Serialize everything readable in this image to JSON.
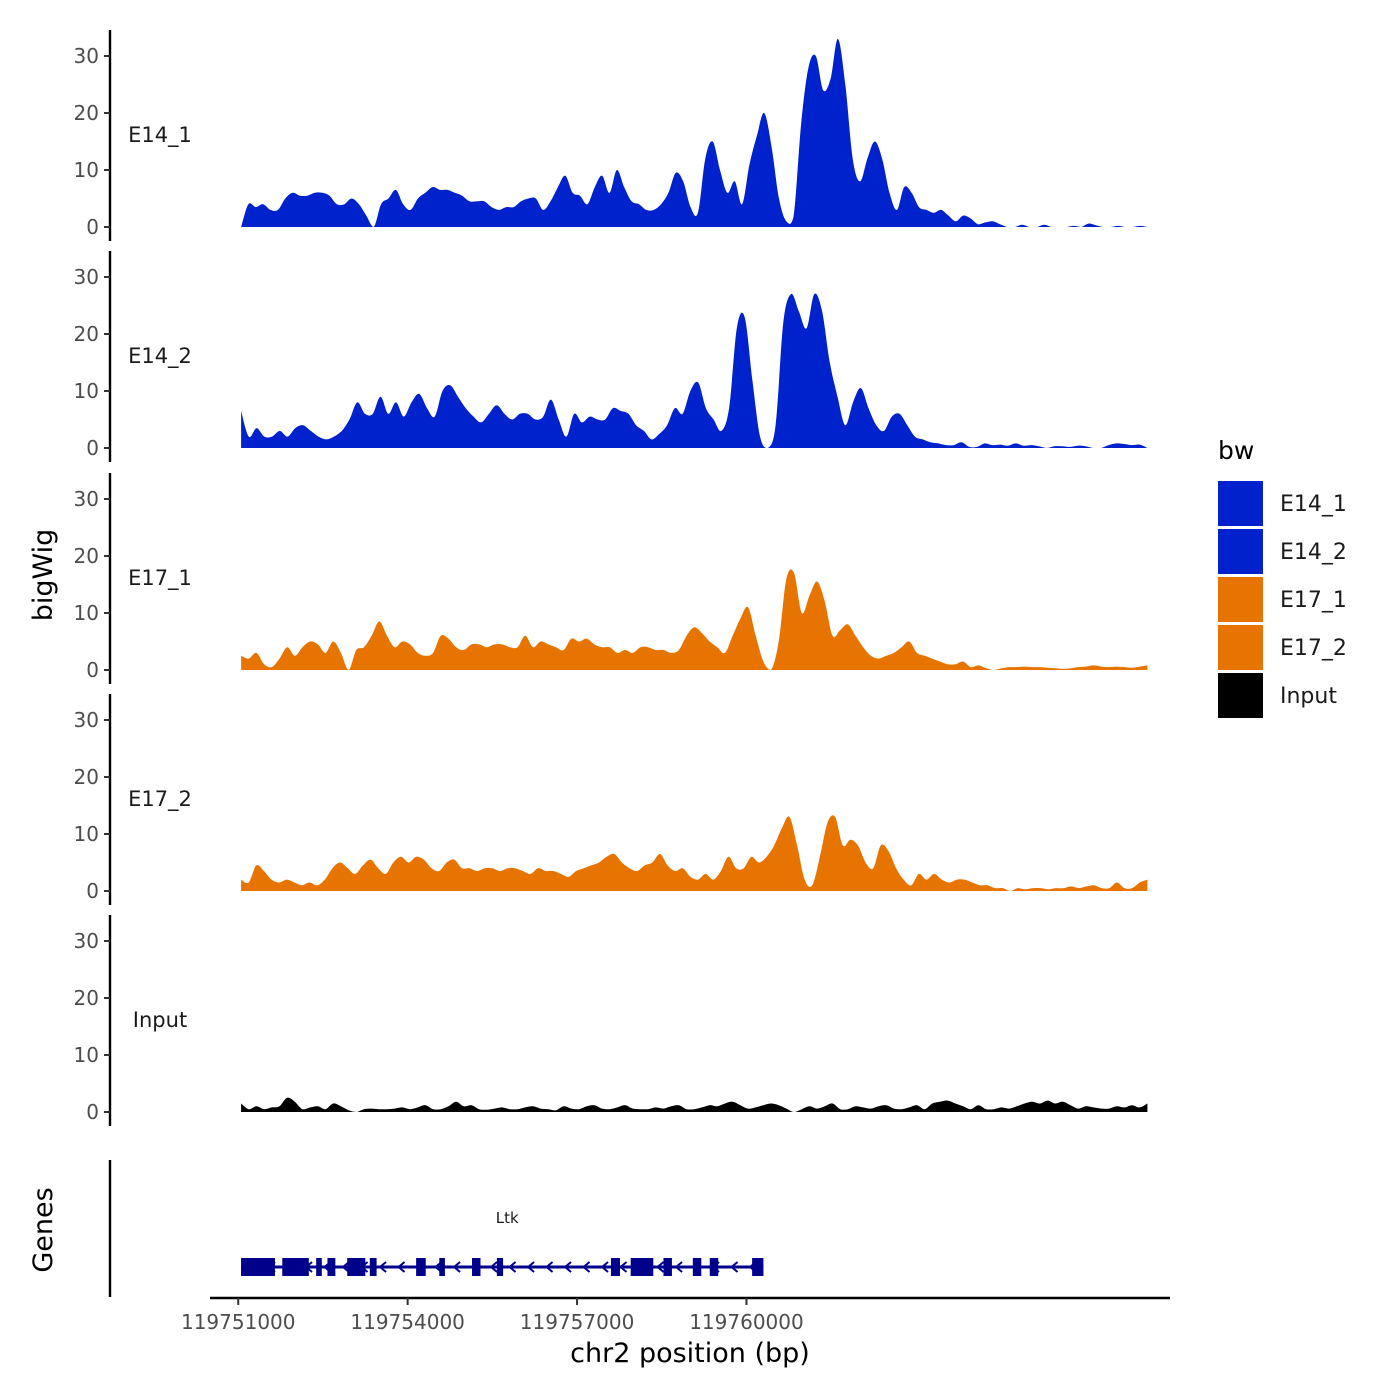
{
  "chart_data": {
    "type": "area",
    "ylabel": "bigWig",
    "xlabel": "chr2 position (bp)",
    "xlim": [
      119750500,
      119767500
    ],
    "data_range": [
      119751050,
      119767100
    ],
    "ylim": [
      0,
      35
    ],
    "yticks": [
      0,
      10,
      20,
      30
    ],
    "xticks": [
      119751000,
      119754000,
      119757000,
      119760000
    ],
    "xtick_labels": [
      "119751000",
      "119754000",
      "119757000",
      "119760000"
    ],
    "legend": {
      "title": "bw",
      "position": "right",
      "entries": [
        {
          "label": "E14_1",
          "color": "#0022CC"
        },
        {
          "label": "E14_2",
          "color": "#0022CC"
        },
        {
          "label": "E17_1",
          "color": "#E87400"
        },
        {
          "label": "E17_2",
          "color": "#E87400"
        },
        {
          "label": "Input",
          "color": "#000000"
        }
      ]
    },
    "series": [
      {
        "name": "E14_1",
        "color": "#0022CC",
        "values": [
          0,
          4,
          3.5,
          4,
          3,
          3,
          5,
          6,
          5.5,
          5.5,
          6,
          6,
          5.5,
          4,
          4,
          5,
          4,
          2,
          0,
          4,
          5,
          6.5,
          4,
          3,
          5,
          6,
          7,
          6.5,
          6.5,
          6,
          5.5,
          4.5,
          4.5,
          4.5,
          3.5,
          3,
          3.5,
          3.5,
          4.5,
          5,
          5,
          3,
          4.5,
          7,
          9,
          6,
          5.5,
          4,
          7,
          9,
          6,
          10,
          7,
          4.5,
          4,
          3,
          3,
          4,
          6,
          9.5,
          8,
          3.5,
          2.5,
          12,
          15,
          10,
          6,
          8,
          4,
          11,
          16,
          20,
          14,
          5,
          1,
          2,
          18,
          28,
          30,
          24,
          26,
          33,
          25,
          12,
          8,
          12,
          15,
          12,
          6,
          3,
          7,
          6,
          3.5,
          3,
          2.5,
          3,
          2,
          1,
          2,
          1.5,
          0.5,
          0.8,
          1,
          0.5,
          0,
          0,
          0.4,
          0,
          0,
          0.4,
          0,
          0,
          0,
          0.2,
          0,
          0.6,
          0.3,
          0,
          0,
          0.2,
          0,
          0,
          0.2,
          0
        ]
      },
      {
        "name": "E14_2",
        "color": "#0022CC",
        "values": [
          6.5,
          2,
          3.5,
          2,
          2,
          3,
          2,
          3.5,
          4,
          3,
          2,
          1.5,
          2,
          3,
          5,
          8,
          6,
          6,
          9,
          6,
          8,
          5.5,
          8,
          9.5,
          7,
          5.5,
          10,
          11,
          9,
          7,
          5.5,
          4.5,
          6,
          7.5,
          6,
          5,
          6,
          6,
          5,
          5.5,
          8.5,
          5,
          2,
          6,
          4.5,
          5.5,
          5,
          5,
          7,
          6.5,
          6,
          4,
          3,
          1.5,
          2.5,
          4,
          7,
          6,
          10,
          11.5,
          7,
          5,
          3,
          7,
          21,
          23,
          12,
          2,
          0,
          4,
          22,
          27,
          24,
          21,
          27,
          24,
          15,
          9,
          4,
          8,
          10.5,
          7,
          4,
          3,
          5.5,
          6,
          4,
          2,
          1.5,
          1,
          0.8,
          0.5,
          0.5,
          1,
          0.2,
          0.2,
          0.8,
          0.5,
          0.6,
          0.4,
          0.8,
          0.4,
          0.5,
          0.3,
          0,
          0.3,
          0.3,
          0.2,
          0.4,
          0.3,
          0,
          0,
          0.5,
          0.8,
          0.7,
          0.5,
          0.6,
          0
        ]
      },
      {
        "name": "E17_1",
        "color": "#E87400",
        "values": [
          2.5,
          2,
          3,
          1,
          0.5,
          2,
          4,
          2.5,
          4,
          5,
          4.5,
          3,
          5,
          3,
          0,
          3.5,
          4,
          6,
          8.5,
          6,
          4,
          5,
          4.5,
          3,
          2.5,
          3,
          6,
          5.5,
          4,
          3.5,
          4.5,
          4.5,
          4,
          4.5,
          4.5,
          4,
          4,
          6,
          4,
          5,
          4.5,
          4,
          3.5,
          5.5,
          5,
          5.5,
          4.5,
          4,
          4,
          3,
          3.5,
          3,
          4,
          4,
          3.5,
          3.5,
          3,
          3.5,
          6,
          7.5,
          6.5,
          5,
          4,
          3,
          6,
          9,
          11,
          6,
          1.5,
          0,
          5,
          16,
          17,
          10,
          13,
          15.5,
          12,
          6,
          7,
          8,
          6,
          4,
          2.5,
          2,
          2.5,
          3,
          4,
          5,
          3,
          2.5,
          2,
          1.5,
          1,
          1,
          1.5,
          0.5,
          0.8,
          0.3,
          0,
          0.3,
          0.5,
          0.5,
          0.6,
          0.5,
          0.5,
          0.4,
          0.3,
          0.2,
          0.3,
          0.5,
          0.6,
          0.8,
          0.6,
          0.5,
          0.6,
          0.5,
          0.4,
          0.6,
          0.8
        ]
      },
      {
        "name": "E17_2",
        "color": "#E87400",
        "values": [
          2,
          1.5,
          4.5,
          3.5,
          2,
          1.5,
          2,
          1.5,
          1,
          1.5,
          1,
          2,
          4,
          5,
          4,
          3,
          4.5,
          5.5,
          4,
          3,
          5,
          6,
          5,
          6,
          5.5,
          4,
          3.5,
          5,
          5.5,
          4,
          4,
          3.5,
          4,
          4,
          3.5,
          4,
          4,
          3.5,
          3,
          4,
          3.5,
          3.5,
          3,
          2.5,
          3.5,
          4,
          4.5,
          5,
          6,
          6.5,
          5,
          4,
          3.5,
          4.5,
          5,
          6.5,
          4.5,
          3.5,
          4,
          2.5,
          2,
          3,
          2,
          3.5,
          6,
          4,
          4,
          6,
          5,
          6,
          8,
          11,
          13,
          8,
          2,
          1,
          6,
          12,
          13,
          8,
          9,
          8,
          5,
          4,
          8,
          7,
          4,
          2,
          1,
          3,
          2,
          3,
          2,
          1.5,
          2,
          2,
          1.5,
          1,
          1,
          0.5,
          0.5,
          0,
          0.5,
          0.3,
          0.5,
          0.5,
          0.3,
          0.5,
          0.5,
          0.8,
          0.5,
          0.8,
          1,
          0.5,
          0.5,
          1.5,
          0.5,
          0.5,
          1.5,
          2
        ]
      },
      {
        "name": "Input",
        "color": "#000000",
        "values": [
          1.5,
          0.5,
          1,
          0.5,
          0.8,
          1,
          2.5,
          1.8,
          0.5,
          0.8,
          1,
          0.5,
          1.5,
          1,
          0.3,
          0,
          0.5,
          0.6,
          0.5,
          0.5,
          0.6,
          0.8,
          0.5,
          0.8,
          1.2,
          0.5,
          0.5,
          1,
          1.8,
          1,
          1.2,
          0.5,
          0.4,
          0.6,
          0.8,
          0.5,
          0.5,
          0.8,
          1,
          0.6,
          0.5,
          0.3,
          1,
          0.6,
          0.5,
          1,
          1.2,
          0.6,
          0.5,
          0.8,
          1.2,
          0.6,
          0.5,
          0.5,
          0.8,
          0.6,
          1,
          1.2,
          0.5,
          0.5,
          0.8,
          1.2,
          1,
          1.5,
          1.8,
          1.2,
          0.6,
          0.8,
          1.2,
          1.5,
          1.2,
          0.6,
          0,
          0.5,
          1,
          0.6,
          1,
          1.5,
          0.5,
          0.5,
          1,
          0.8,
          0.6,
          1,
          1.2,
          0.6,
          0.5,
          0.8,
          1.2,
          0.5,
          1.5,
          1.8,
          2,
          1.5,
          1,
          0.5,
          1.2,
          0.5,
          0.5,
          0.8,
          0.6,
          1,
          1.5,
          1.8,
          1.5,
          2,
          1.5,
          1.8,
          1.2,
          0.6,
          1,
          0.8,
          0.6,
          0.6,
          1,
          0.8,
          1.2,
          0.8,
          1.5
        ]
      }
    ],
    "gene_track": {
      "title": "Genes",
      "gene_name": "Ltk",
      "strand": "-",
      "gene_start": 119751050,
      "gene_end": 119760300,
      "exons": [
        [
          119751050,
          119751650
        ],
        [
          119751780,
          119752250
        ],
        [
          119752380,
          119752480
        ],
        [
          119752580,
          119752720
        ],
        [
          119752930,
          119753250
        ],
        [
          119753330,
          119753450
        ],
        [
          119754150,
          119754320
        ],
        [
          119754560,
          119754660
        ],
        [
          119755140,
          119755290
        ],
        [
          119755580,
          119755690
        ],
        [
          119757600,
          119757760
        ],
        [
          119757950,
          119758350
        ],
        [
          119758530,
          119758680
        ],
        [
          119759050,
          119759200
        ],
        [
          119759350,
          119759500
        ],
        [
          119760100,
          119760300
        ]
      ],
      "color": "#00008B"
    }
  }
}
